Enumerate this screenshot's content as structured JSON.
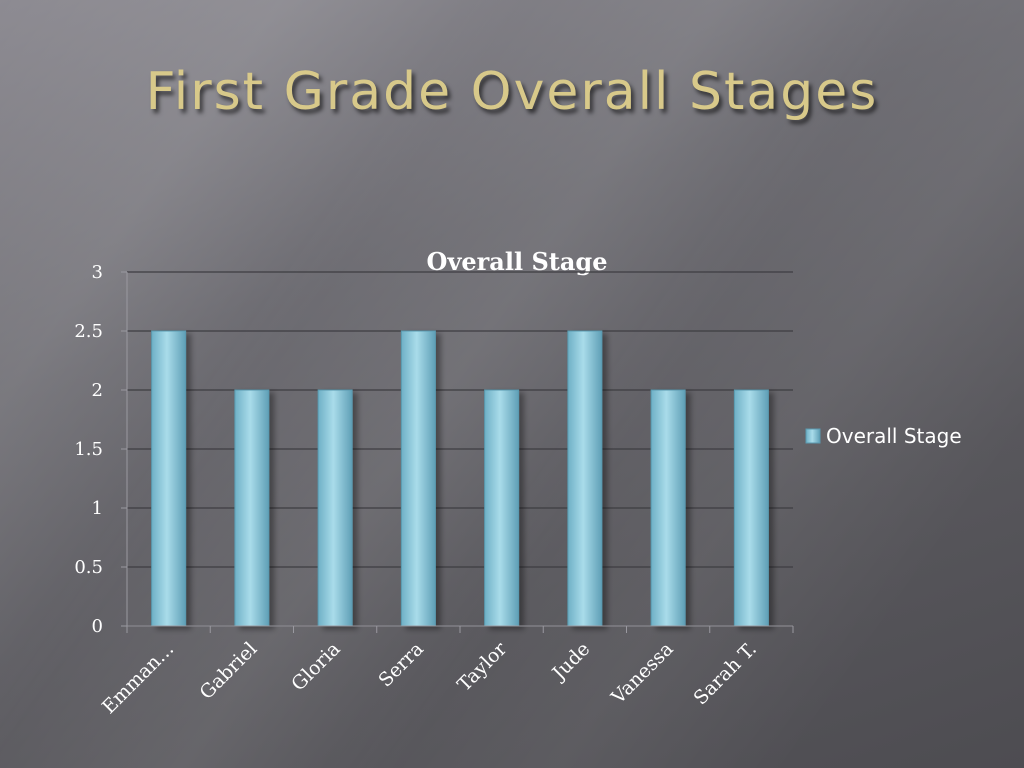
{
  "slide": {
    "title": "First Grade Overall Stages"
  },
  "colors": {
    "bar": "#8ec9dc",
    "bar_edge": "#5a9ab0",
    "grid": "#3e3d42",
    "title": "#d8c98a"
  },
  "chart_data": {
    "type": "bar",
    "title": "Overall Stage",
    "categories": [
      "Emman...",
      "Gabriel",
      "Gloria",
      "Serra",
      "Taylor",
      "Jude",
      "Vanessa",
      "Sarah T."
    ],
    "series": [
      {
        "name": "Overall Stage",
        "values": [
          2.5,
          2,
          2,
          2.5,
          2,
          2.5,
          2,
          2
        ]
      }
    ],
    "ylim": [
      0,
      3
    ],
    "yticks": [
      "0",
      "0.5",
      "1",
      "1.5",
      "2",
      "2.5",
      "3"
    ],
    "grid": true,
    "legend_position": "right"
  }
}
